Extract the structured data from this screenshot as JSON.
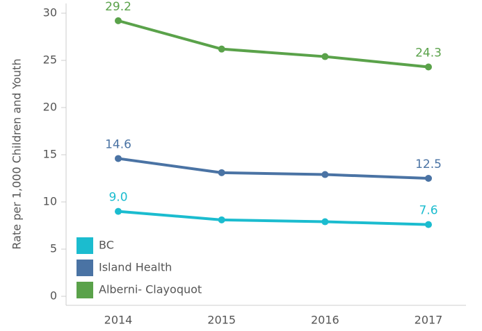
{
  "chart_data": {
    "type": "line",
    "y_label": "Rate per 1,000 Children and Youth",
    "categories": [
      "2014",
      "2015",
      "2016",
      "2017"
    ],
    "series": [
      {
        "name": "BC",
        "color": "#1bbccf",
        "values": [
          9.0,
          8.1,
          7.9,
          7.6
        ],
        "value_labels": [
          "9.0",
          null,
          null,
          "7.6"
        ]
      },
      {
        "name": "Island Health",
        "color": "#4a73a4",
        "values": [
          14.6,
          13.1,
          12.9,
          12.5
        ],
        "value_labels": [
          "14.6",
          null,
          null,
          "12.5"
        ]
      },
      {
        "name": "Alberni- Clayoquot",
        "color": "#5aa24a",
        "values": [
          29.2,
          26.2,
          25.4,
          24.3
        ],
        "value_labels": [
          "29.2",
          null,
          null,
          "24.3"
        ]
      }
    ],
    "ylim": [
      0,
      30
    ],
    "yticks": [
      0,
      5,
      10,
      15,
      20,
      25,
      30
    ],
    "legend": "bottom-left"
  }
}
